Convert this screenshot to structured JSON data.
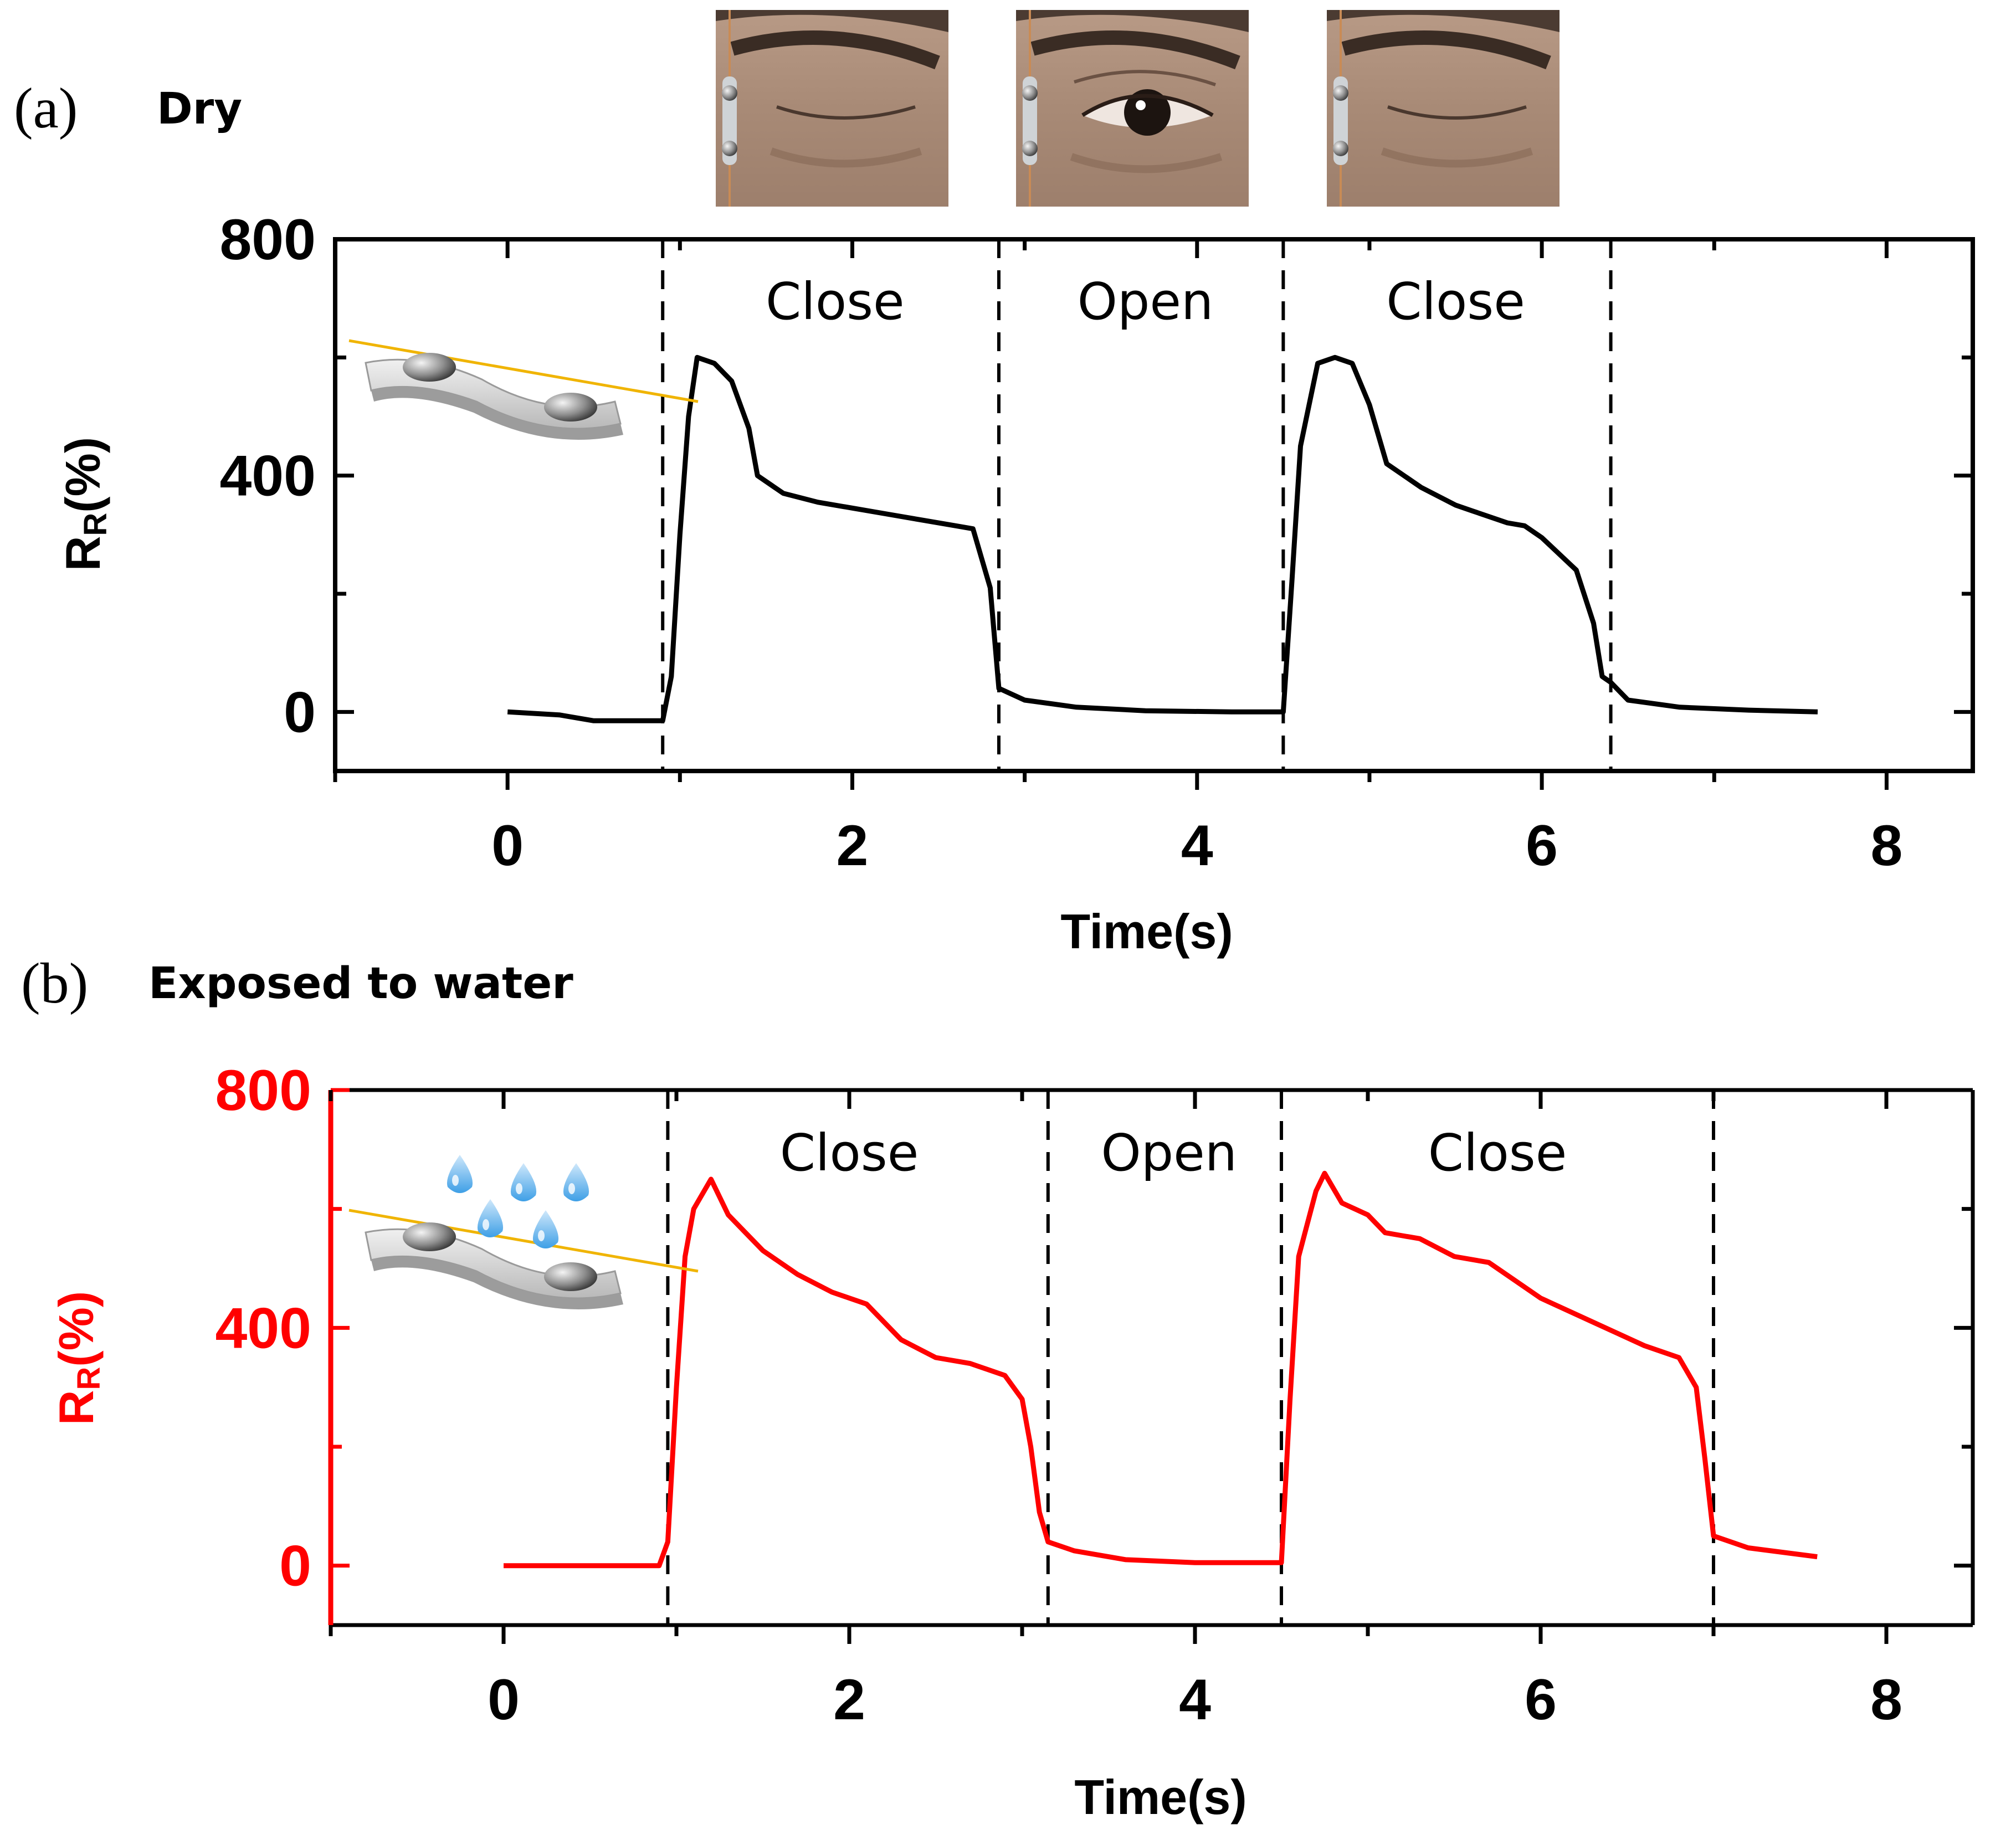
{
  "panels": [
    {
      "panel_label": "(a)",
      "condition_label": "Dry",
      "sensor_icon": "sensor-strip-icon",
      "photo_icons": [
        "closed-eye-photo",
        "open-eye-photo",
        "closed-eye-photo"
      ],
      "color": "#000000"
    },
    {
      "panel_label": "(b)",
      "condition_label": "Exposed to water",
      "sensor_icon": "sensor-strip-with-water-drops-icon",
      "color": "#ff0000"
    }
  ],
  "chart_data": [
    {
      "type": "line",
      "xlabel": "Time(s)",
      "ylabel": "RR(%)",
      "xlim": [
        -1,
        8.5
      ],
      "ylim": [
        -100,
        800
      ],
      "xticks": [
        0,
        2,
        4,
        6,
        8
      ],
      "yticks": [
        0,
        400,
        800
      ],
      "grid": false,
      "axis_color": "#000000",
      "line_color": "#000000",
      "phase_boundaries": [
        0.9,
        2.85,
        4.5,
        6.4
      ],
      "phases": [
        {
          "label": "Close",
          "x": 1.9
        },
        {
          "label": "Open",
          "x": 3.7
        },
        {
          "label": "Close",
          "x": 5.5
        }
      ],
      "series": [
        {
          "x": [
            0,
            0.3,
            0.5,
            0.9,
            0.95,
            1.0,
            1.05,
            1.1,
            1.2,
            1.3,
            1.4,
            1.45,
            1.6,
            1.8,
            2.0,
            2.2,
            2.4,
            2.6,
            2.7,
            2.8,
            2.85,
            3.0,
            3.3,
            3.7,
            4.2,
            4.5,
            4.55,
            4.6,
            4.7,
            4.8,
            4.9,
            5.0,
            5.1,
            5.3,
            5.5,
            5.6,
            5.8,
            5.9,
            6.0,
            6.2,
            6.3,
            6.35,
            6.4,
            6.5,
            6.8,
            7.2,
            7.6
          ],
          "y": [
            0,
            -5,
            -15,
            -15,
            60,
            300,
            500,
            600,
            590,
            560,
            480,
            400,
            370,
            355,
            345,
            335,
            325,
            315,
            310,
            210,
            40,
            20,
            8,
            2,
            0,
            0,
            220,
            450,
            590,
            600,
            590,
            520,
            420,
            380,
            350,
            340,
            320,
            315,
            295,
            240,
            150,
            60,
            50,
            20,
            8,
            3,
            0
          ]
        }
      ]
    },
    {
      "type": "line",
      "xlabel": "Time(s)",
      "ylabel": "RR(%)",
      "xlim": [
        -1,
        8.5
      ],
      "ylim": [
        -100,
        800
      ],
      "xticks": [
        0,
        2,
        4,
        6,
        8
      ],
      "yticks": [
        0,
        400,
        800
      ],
      "grid": false,
      "axis_color": "#ff0000",
      "line_color": "#ff0000",
      "phase_boundaries": [
        0.95,
        3.15,
        4.5,
        7.0
      ],
      "phases": [
        {
          "label": "Close",
          "x": 2.0
        },
        {
          "label": "Open",
          "x": 3.85
        },
        {
          "label": "Close",
          "x": 5.75
        }
      ],
      "series": [
        {
          "x": [
            0,
            0.5,
            0.9,
            0.95,
            1.0,
            1.05,
            1.1,
            1.2,
            1.3,
            1.4,
            1.5,
            1.7,
            1.9,
            2.1,
            2.3,
            2.5,
            2.7,
            2.9,
            3.0,
            3.05,
            3.1,
            3.15,
            3.3,
            3.6,
            4.0,
            4.5,
            4.55,
            4.6,
            4.7,
            4.75,
            4.85,
            5.0,
            5.1,
            5.2,
            5.3,
            5.5,
            5.7,
            6.0,
            6.3,
            6.6,
            6.8,
            6.9,
            6.95,
            7.0,
            7.2,
            7.6
          ],
          "y": [
            0,
            0,
            0,
            40,
            300,
            520,
            600,
            650,
            590,
            560,
            530,
            490,
            460,
            440,
            380,
            350,
            340,
            320,
            280,
            200,
            90,
            40,
            25,
            10,
            5,
            5,
            280,
            520,
            630,
            660,
            610,
            590,
            560,
            555,
            550,
            520,
            510,
            450,
            410,
            370,
            350,
            300,
            180,
            50,
            30,
            15
          ]
        }
      ]
    }
  ]
}
